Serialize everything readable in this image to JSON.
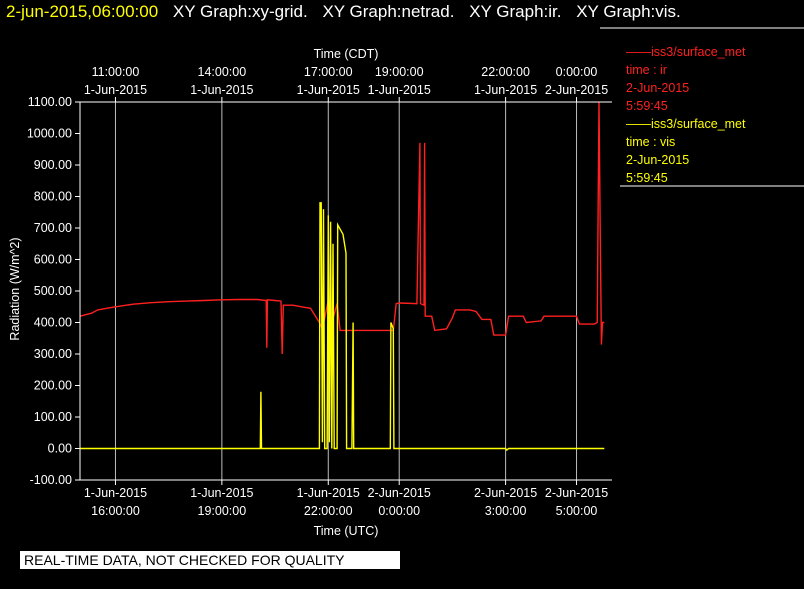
{
  "header": {
    "timestamp": "2-jun-2015,06:00:00",
    "graphs": [
      "XY Graph:xy-grid.",
      "XY Graph:netrad.",
      "XY Graph:ir.",
      "XY Graph:vis."
    ]
  },
  "legend": [
    {
      "source": "iss3/surface_met",
      "var": "time : ir",
      "date": "2-Jun-2015",
      "time": "5:59:45",
      "color": "#ff2020"
    },
    {
      "source": "iss3/surface_met",
      "var": "time : vis",
      "date": "2-Jun-2015",
      "time": "5:59:45",
      "color": "#ffff00"
    }
  ],
  "disclaimer": "REAL-TIME DATA, NOT CHECKED FOR QUALITY",
  "chart_data": {
    "type": "line",
    "title": "",
    "xlabel": "Time (UTC)",
    "x2label": "Time (CDT)",
    "ylabel": "Radiation (W/m^2)",
    "ylim": [
      -100,
      1100
    ],
    "xlim": [
      "2015-06-01T15:00",
      "2015-06-02T06:00"
    ],
    "grid": true,
    "y_ticks": [
      "-100.00",
      "0.00",
      "100.00",
      "200.00",
      "300.00",
      "400.00",
      "500.00",
      "600.00",
      "700.00",
      "800.00",
      "900.00",
      "1000.00",
      "1100.00"
    ],
    "x_ticks": [
      {
        "t": "2015-06-01T16:00",
        "date": "1-Jun-2015",
        "time": "16:00:00"
      },
      {
        "t": "2015-06-01T19:00",
        "date": "1-Jun-2015",
        "time": "19:00:00"
      },
      {
        "t": "2015-06-01T22:00",
        "date": "1-Jun-2015",
        "time": "22:00:00"
      },
      {
        "t": "2015-06-02T00:00",
        "date": "2-Jun-2015",
        "time": "0:00:00"
      },
      {
        "t": "2015-06-02T03:00",
        "date": "2-Jun-2015",
        "time": "3:00:00"
      },
      {
        "t": "2015-06-02T05:00",
        "date": "2-Jun-2015",
        "time": "5:00:00"
      }
    ],
    "x2_ticks": [
      {
        "t": "2015-06-01T16:00",
        "time": "11:00:00",
        "date": "1-Jun-2015"
      },
      {
        "t": "2015-06-01T19:00",
        "time": "14:00:00",
        "date": "1-Jun-2015"
      },
      {
        "t": "2015-06-01T22:00",
        "time": "17:00:00",
        "date": "1-Jun-2015"
      },
      {
        "t": "2015-06-02T00:00",
        "time": "19:00:00",
        "date": "1-Jun-2015"
      },
      {
        "t": "2015-06-02T03:00",
        "time": "22:00:00",
        "date": "1-Jun-2015"
      },
      {
        "t": "2015-06-02T05:00",
        "time": "0:00:00",
        "date": "2-Jun-2015"
      }
    ],
    "series": [
      {
        "name": "iss3/surface_met time : ir",
        "color": "#ff2020",
        "points": [
          [
            "2015-06-01T15:00",
            420
          ],
          [
            "2015-06-01T15:20",
            430
          ],
          [
            "2015-06-01T15:30",
            440
          ],
          [
            "2015-06-01T15:45",
            445
          ],
          [
            "2015-06-01T16:00",
            450
          ],
          [
            "2015-06-01T16:30",
            458
          ],
          [
            "2015-06-01T17:00",
            463
          ],
          [
            "2015-06-01T17:30",
            466
          ],
          [
            "2015-06-01T18:00",
            468
          ],
          [
            "2015-06-01T18:30",
            470
          ],
          [
            "2015-06-01T19:00",
            472
          ],
          [
            "2015-06-01T19:30",
            473
          ],
          [
            "2015-06-01T20:00",
            473
          ],
          [
            "2015-06-01T20:15",
            470
          ],
          [
            "2015-06-01T20:16",
            320
          ],
          [
            "2015-06-01T20:17",
            472
          ],
          [
            "2015-06-01T20:30",
            470
          ],
          [
            "2015-06-01T20:40",
            468
          ],
          [
            "2015-06-01T20:42",
            300
          ],
          [
            "2015-06-01T20:44",
            455
          ],
          [
            "2015-06-01T21:00",
            455
          ],
          [
            "2015-06-01T21:15",
            450
          ],
          [
            "2015-06-01T21:30",
            445
          ],
          [
            "2015-06-01T21:45",
            400
          ],
          [
            "2015-06-01T21:50",
            380
          ],
          [
            "2015-06-01T22:00",
            470
          ],
          [
            "2015-06-01T22:05",
            390
          ],
          [
            "2015-06-01T22:15",
            460
          ],
          [
            "2015-06-01T22:20",
            375
          ],
          [
            "2015-06-01T22:45",
            375
          ],
          [
            "2015-06-01T23:00",
            375
          ],
          [
            "2015-06-01T23:30",
            375
          ],
          [
            "2015-06-01T23:50",
            375
          ],
          [
            "2015-06-01T23:55",
            460
          ],
          [
            "2015-06-02T00:00",
            462
          ],
          [
            "2015-06-02T00:30",
            460
          ],
          [
            "2015-06-02T00:35",
            970
          ],
          [
            "2015-06-02T00:36",
            460
          ],
          [
            "2015-06-02T00:42",
            455
          ],
          [
            "2015-06-02T00:43",
            970
          ],
          [
            "2015-06-02T00:44",
            420
          ],
          [
            "2015-06-02T00:55",
            420
          ],
          [
            "2015-06-02T01:00",
            375
          ],
          [
            "2015-06-02T01:20",
            380
          ],
          [
            "2015-06-02T01:30",
            415
          ],
          [
            "2015-06-02T01:35",
            440
          ],
          [
            "2015-06-02T02:00",
            440
          ],
          [
            "2015-06-02T02:10",
            435
          ],
          [
            "2015-06-02T02:20",
            410
          ],
          [
            "2015-06-02T02:35",
            410
          ],
          [
            "2015-06-02T02:40",
            360
          ],
          [
            "2015-06-02T03:00",
            360
          ],
          [
            "2015-06-02T03:05",
            420
          ],
          [
            "2015-06-02T03:30",
            420
          ],
          [
            "2015-06-02T03:35",
            400
          ],
          [
            "2015-06-02T04:00",
            405
          ],
          [
            "2015-06-02T04:05",
            420
          ],
          [
            "2015-06-02T05:00",
            420
          ],
          [
            "2015-06-02T05:05",
            395
          ],
          [
            "2015-06-02T05:30",
            395
          ],
          [
            "2015-06-02T05:35",
            400
          ],
          [
            "2015-06-02T05:38",
            1100
          ],
          [
            "2015-06-02T05:40",
            700
          ],
          [
            "2015-06-02T05:42",
            330
          ],
          [
            "2015-06-02T05:44",
            400
          ],
          [
            "2015-06-02T05:47",
            400
          ]
        ]
      },
      {
        "name": "iss3/surface_met time : vis",
        "color": "#ffff00",
        "points": [
          [
            "2015-06-01T15:00",
            0
          ],
          [
            "2015-06-01T20:05",
            0
          ],
          [
            "2015-06-01T20:06",
            180
          ],
          [
            "2015-06-01T20:07",
            0
          ],
          [
            "2015-06-01T21:45",
            0
          ],
          [
            "2015-06-01T21:46",
            780
          ],
          [
            "2015-06-01T21:48",
            780
          ],
          [
            "2015-06-01T21:50",
            20
          ],
          [
            "2015-06-01T21:52",
            760
          ],
          [
            "2015-06-01T21:54",
            0
          ],
          [
            "2015-06-01T21:58",
            0
          ],
          [
            "2015-06-01T22:00",
            740
          ],
          [
            "2015-06-01T22:02",
            20
          ],
          [
            "2015-06-01T22:04",
            720
          ],
          [
            "2015-06-01T22:06",
            0
          ],
          [
            "2015-06-01T22:08",
            650
          ],
          [
            "2015-06-01T22:10",
            0
          ],
          [
            "2015-06-01T22:15",
            0
          ],
          [
            "2015-06-01T22:16",
            710
          ],
          [
            "2015-06-01T22:25",
            680
          ],
          [
            "2015-06-01T22:30",
            620
          ],
          [
            "2015-06-01T22:31",
            0
          ],
          [
            "2015-06-01T22:40",
            0
          ],
          [
            "2015-06-01T22:42",
            400
          ],
          [
            "2015-06-01T22:43",
            0
          ],
          [
            "2015-06-01T23:45",
            0
          ],
          [
            "2015-06-01T23:46",
            400
          ],
          [
            "2015-06-01T23:50",
            380
          ],
          [
            "2015-06-01T23:51",
            0
          ],
          [
            "2015-06-02T03:00",
            0
          ],
          [
            "2015-06-02T03:02",
            -5
          ],
          [
            "2015-06-02T03:05",
            0
          ],
          [
            "2015-06-02T05:47",
            0
          ]
        ]
      }
    ]
  }
}
